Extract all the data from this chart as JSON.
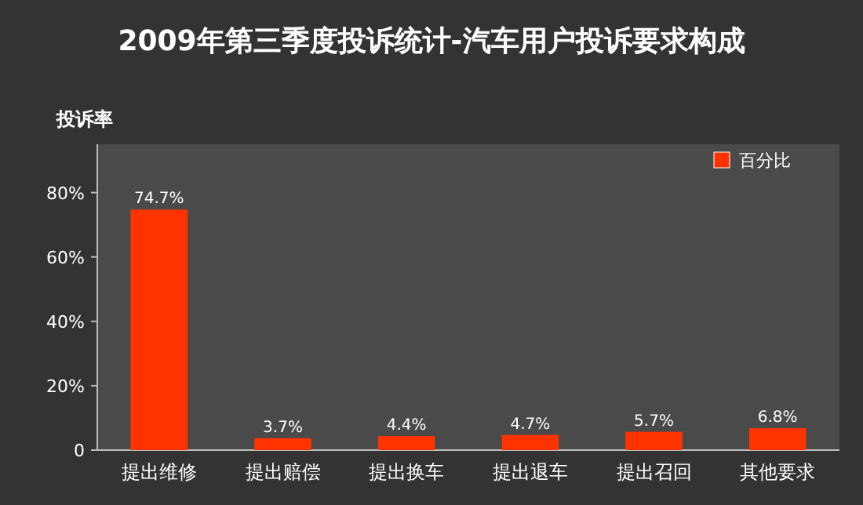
{
  "chart_data": {
    "type": "bar",
    "title": "2009年第三季度投诉统计-汽车用户投诉要求构成",
    "ylabel": "投诉率",
    "categories": [
      "提出维修",
      "提出赔偿",
      "提出换车",
      "提出退车",
      "提出召回",
      "其他要求"
    ],
    "series": [
      {
        "name": "百分比",
        "color": "#ff3300",
        "values": [
          74.7,
          3.7,
          4.4,
          4.7,
          5.7,
          6.8
        ]
      }
    ],
    "value_labels": [
      "74.7%",
      "3.7%",
      "4.4%",
      "4.7%",
      "5.7%",
      "6.8%"
    ],
    "ylim": [
      0,
      95
    ],
    "yticks": [
      0,
      {
        "value": 20,
        "label": "20%"
      },
      {
        "value": 40,
        "label": "40%"
      },
      {
        "value": 60,
        "label": "60%"
      },
      {
        "value": 80,
        "label": "80%"
      }
    ],
    "legend": "top right",
    "grid": false
  }
}
